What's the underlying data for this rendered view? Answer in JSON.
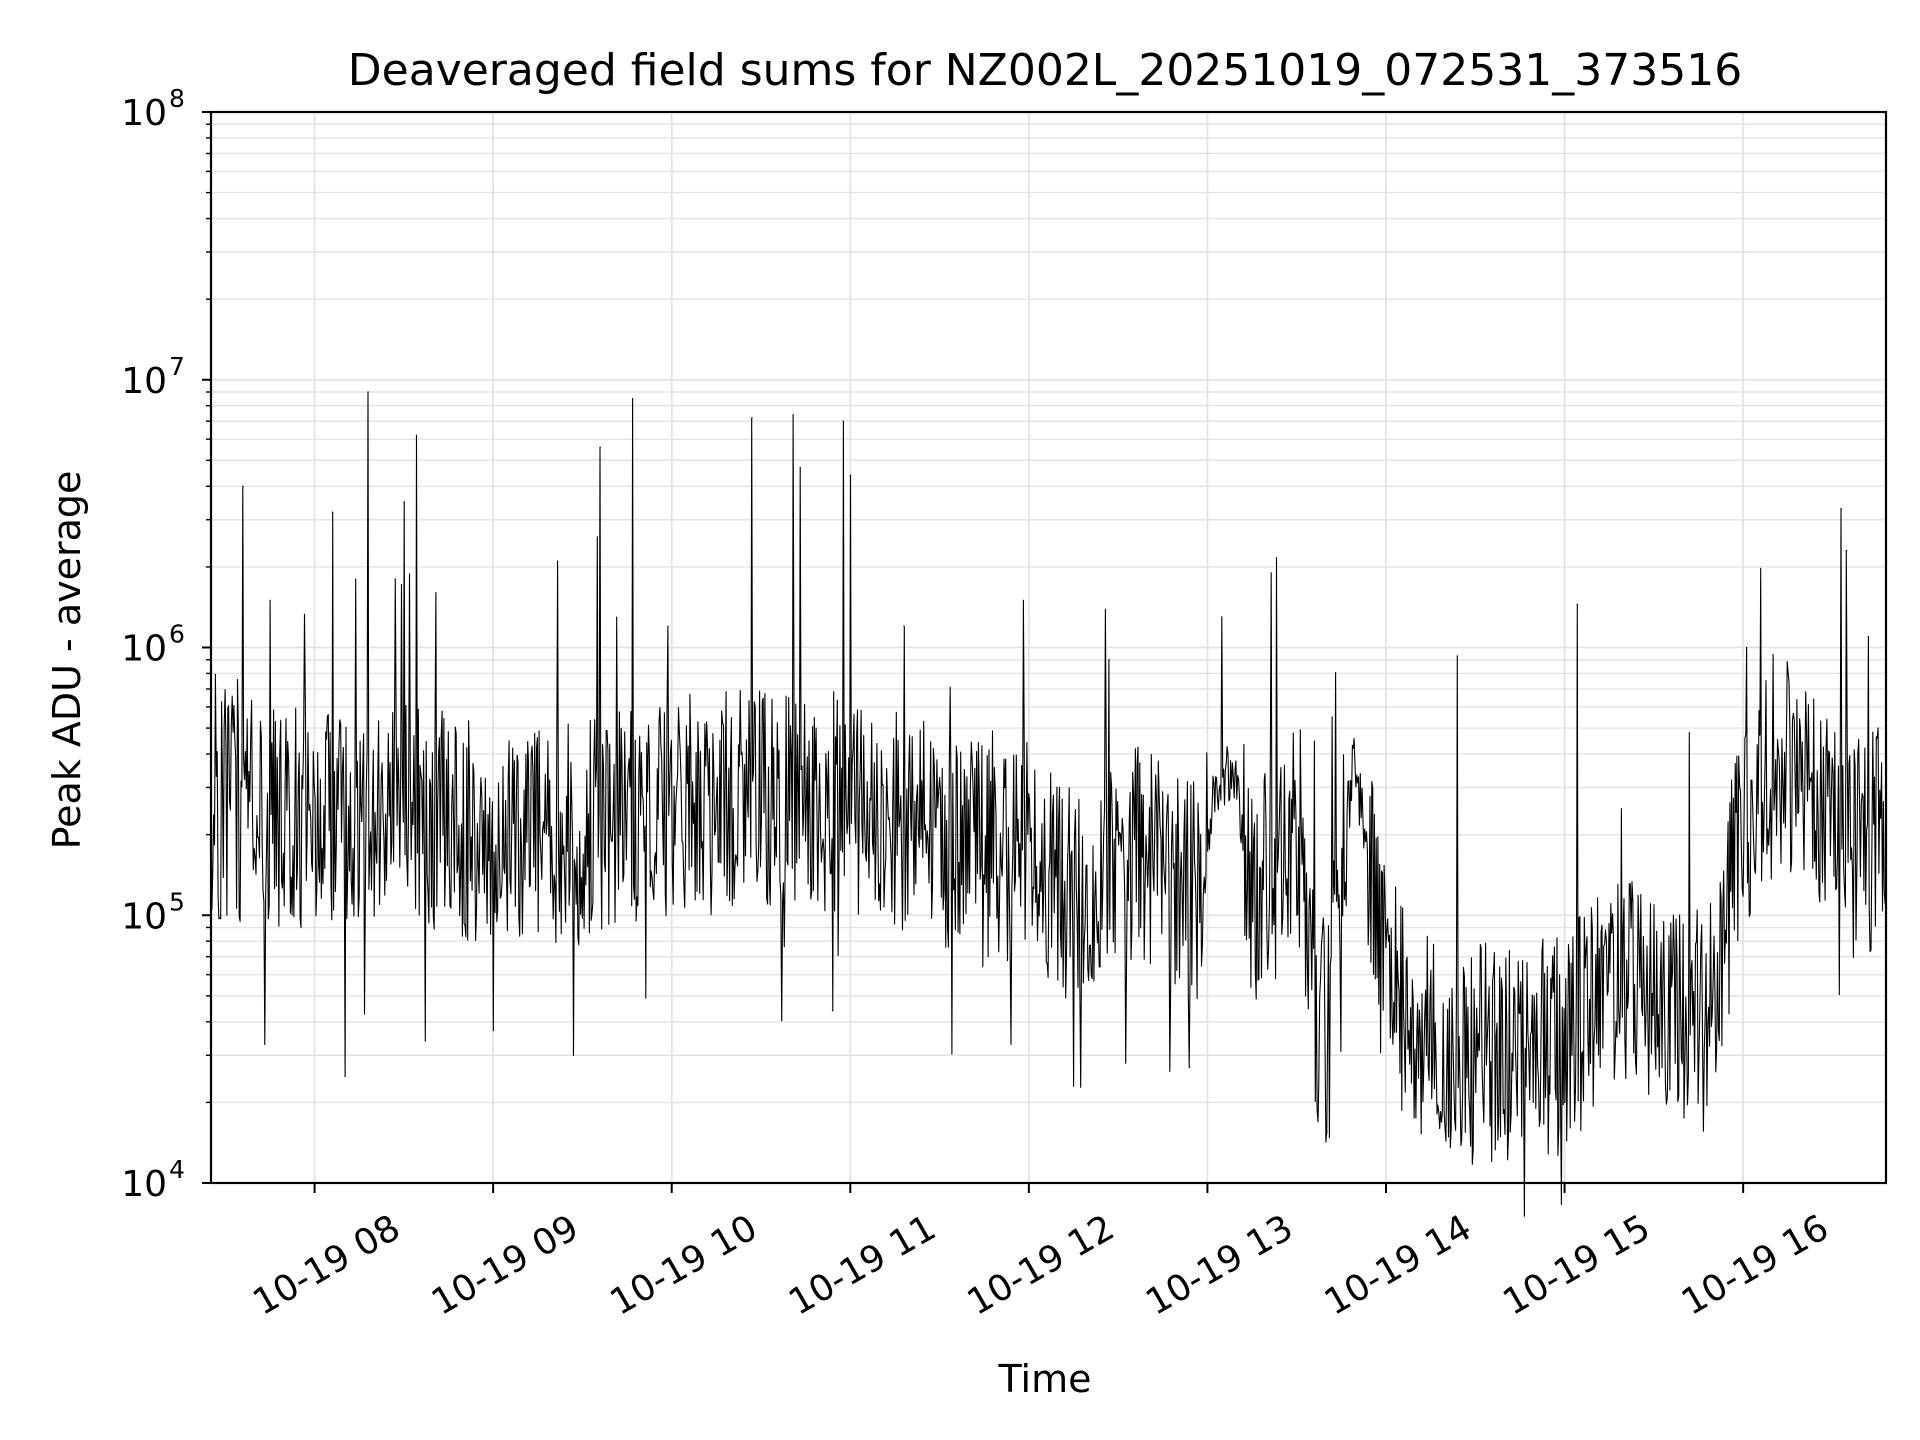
{
  "chart_data": {
    "type": "line",
    "title": "Deaveraged field sums for NZ002L_20251019_072531_373516",
    "xlabel": "Time",
    "ylabel": "Peak ADU - average",
    "yscale": "log",
    "ylim_exponents": [
      4,
      8
    ],
    "y_tick_labels": [
      {
        "base": "10",
        "exp": "4"
      },
      {
        "base": "10",
        "exp": "5"
      },
      {
        "base": "10",
        "exp": "6"
      },
      {
        "base": "10",
        "exp": "7"
      },
      {
        "base": "10",
        "exp": "8"
      }
    ],
    "x_range_hours": [
      7.42,
      16.8
    ],
    "x_ticks": [
      {
        "hour": 8,
        "label": "10-19 08"
      },
      {
        "hour": 9,
        "label": "10-19 09"
      },
      {
        "hour": 10,
        "label": "10-19 10"
      },
      {
        "hour": 11,
        "label": "10-19 11"
      },
      {
        "hour": 12,
        "label": "10-19 12"
      },
      {
        "hour": 13,
        "label": "10-19 13"
      },
      {
        "hour": 14,
        "label": "10-19 14"
      },
      {
        "hour": 15,
        "label": "10-19 15"
      },
      {
        "hour": 16,
        "label": "10-19 16"
      }
    ],
    "grid": true,
    "line_color": "#000000",
    "series": [
      {
        "name": "Peak ADU - average",
        "description": "Approximate baseline levels (ADU) read from the plot; a dense noisy trace fluctuates around these with tall spikes listed separately.",
        "baseline": [
          {
            "t": 7.42,
            "v": 250000
          },
          {
            "t": 8.0,
            "v": 230000
          },
          {
            "t": 8.5,
            "v": 240000
          },
          {
            "t": 9.0,
            "v": 200000
          },
          {
            "t": 9.5,
            "v": 200000
          },
          {
            "t": 10.0,
            "v": 250000
          },
          {
            "t": 10.5,
            "v": 280000
          },
          {
            "t": 11.0,
            "v": 270000
          },
          {
            "t": 11.5,
            "v": 200000
          },
          {
            "t": 12.0,
            "v": 170000
          },
          {
            "t": 12.3,
            "v": 110000
          },
          {
            "t": 12.6,
            "v": 180000
          },
          {
            "t": 12.95,
            "v": 120000
          },
          {
            "t": 13.05,
            "v": 300000
          },
          {
            "t": 13.15,
            "v": 350000
          },
          {
            "t": 13.25,
            "v": 110000
          },
          {
            "t": 13.45,
            "v": 180000
          },
          {
            "t": 13.52,
            "v": 190000
          },
          {
            "t": 13.58,
            "v": 50000
          },
          {
            "t": 13.68,
            "v": 35000
          },
          {
            "t": 13.75,
            "v": 150000
          },
          {
            "t": 13.82,
            "v": 380000
          },
          {
            "t": 13.9,
            "v": 180000
          },
          {
            "t": 14.0,
            "v": 55000
          },
          {
            "t": 14.2,
            "v": 35000
          },
          {
            "t": 14.5,
            "v": 30000
          },
          {
            "t": 14.8,
            "v": 32000
          },
          {
            "t": 15.0,
            "v": 33000
          },
          {
            "t": 15.3,
            "v": 55000
          },
          {
            "t": 15.6,
            "v": 45000
          },
          {
            "t": 15.8,
            "v": 40000
          },
          {
            "t": 16.0,
            "v": 220000
          },
          {
            "t": 16.2,
            "v": 400000
          },
          {
            "t": 16.4,
            "v": 250000
          },
          {
            "t": 16.6,
            "v": 180000
          },
          {
            "t": 16.8,
            "v": 200000
          }
        ],
        "spikes": [
          {
            "t": 7.6,
            "v": 4000000
          },
          {
            "t": 7.75,
            "v": 1500000
          },
          {
            "t": 8.1,
            "v": 3200000
          },
          {
            "t": 8.23,
            "v": 1800000
          },
          {
            "t": 8.3,
            "v": 9000000
          },
          {
            "t": 8.45,
            "v": 1800000
          },
          {
            "t": 8.5,
            "v": 3500000
          },
          {
            "t": 8.57,
            "v": 6200000
          },
          {
            "t": 8.68,
            "v": 1600000
          },
          {
            "t": 9.36,
            "v": 2100000
          },
          {
            "t": 9.6,
            "v": 5600000
          },
          {
            "t": 9.78,
            "v": 8500000
          },
          {
            "t": 9.98,
            "v": 1200000
          },
          {
            "t": 10.45,
            "v": 7200000
          },
          {
            "t": 10.68,
            "v": 7400000
          },
          {
            "t": 10.72,
            "v": 4700000
          },
          {
            "t": 10.96,
            "v": 7000000
          },
          {
            "t": 11.0,
            "v": 4400000
          },
          {
            "t": 11.3,
            "v": 1200000
          },
          {
            "t": 11.97,
            "v": 1500000
          },
          {
            "t": 12.45,
            "v": 900000
          },
          {
            "t": 13.08,
            "v": 1300000
          },
          {
            "t": 13.7,
            "v": 550000
          },
          {
            "t": 14.4,
            "v": 930000
          },
          {
            "t": 15.07,
            "v": 1450000
          },
          {
            "t": 15.7,
            "v": 480000
          },
          {
            "t": 16.02,
            "v": 1000000
          },
          {
            "t": 16.55,
            "v": 3300000
          },
          {
            "t": 16.58,
            "v": 2300000
          },
          {
            "t": 16.7,
            "v": 1100000
          }
        ],
        "dips": [
          {
            "t": 7.72,
            "v": 33000
          },
          {
            "t": 8.17,
            "v": 25000
          },
          {
            "t": 8.62,
            "v": 34000
          },
          {
            "t": 9.45,
            "v": 30000
          },
          {
            "t": 10.9,
            "v": 44000
          },
          {
            "t": 11.9,
            "v": 33000
          },
          {
            "t": 12.25,
            "v": 23000
          },
          {
            "t": 12.9,
            "v": 27000
          },
          {
            "t": 13.67,
            "v": 15500
          },
          {
            "t": 14.3,
            "v": 16000
          },
          {
            "t": 14.7,
            "v": 18000
          },
          {
            "t": 15.0,
            "v": 20000
          },
          {
            "t": 15.67,
            "v": 17500
          }
        ]
      }
    ]
  }
}
